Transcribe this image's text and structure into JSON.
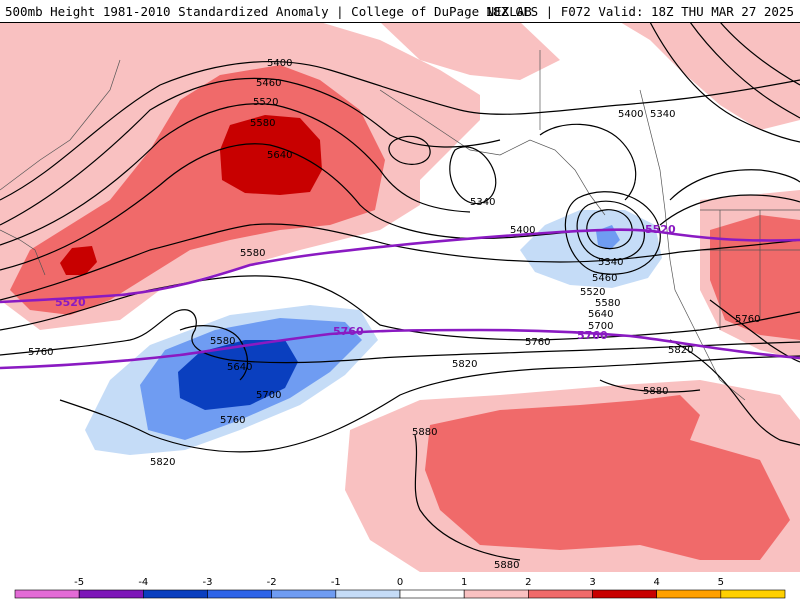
{
  "header": {
    "title_left": "500mb Height 1981-2010 Standardized Anomaly | College of DuPage NEXLAB",
    "title_right": "18Z GFS | F072 Valid: 18Z THU MAR 27 2025"
  },
  "contour_labels": {
    "c5400": "5400",
    "c5460": "5460",
    "c5520": "5520",
    "c5580": "5580",
    "c5640": "5640",
    "c5340": "5340",
    "c5700": "5700",
    "c5760": "5760",
    "c5820": "5820",
    "c5880": "5880"
  },
  "purple_labels": {
    "p5520": "5520",
    "p5760": "5760"
  },
  "legend": {
    "ticks": [
      "-5",
      "-4",
      "-3",
      "-2",
      "-1",
      "0",
      "1",
      "2",
      "3",
      "4",
      "5"
    ],
    "colors": [
      "#e36bd6",
      "#7d16b8",
      "#0a3fbf",
      "#2d64e8",
      "#6f9cf2",
      "#c5dcf7",
      "#ffffff",
      "#f9c1c1",
      "#f06a6a",
      "#c80000",
      "#ffa000",
      "#ffd000"
    ]
  },
  "colors": {
    "strong_pos": "#c80000",
    "pos": "#f06a6a",
    "weak_pos": "#f9c1c1",
    "weak_neg": "#c5dcf7",
    "neg": "#6f9cf2",
    "strong_neg": "#0a3fbf",
    "purple_line": "#8a1ac2"
  }
}
